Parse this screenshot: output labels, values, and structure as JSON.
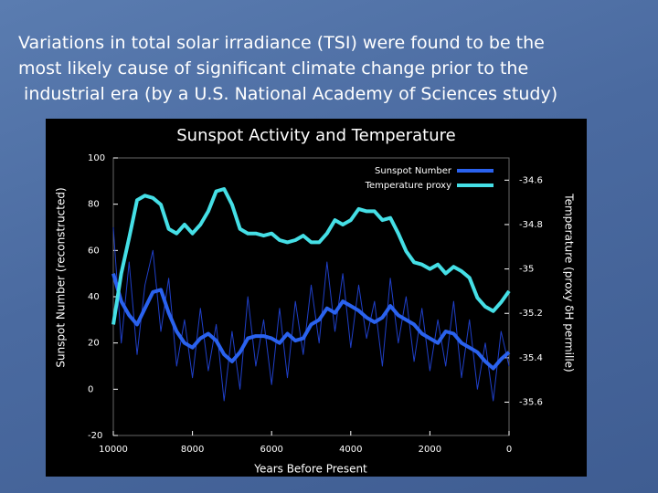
{
  "slide": {
    "text_lines": [
      "Variations in total solar irradiance (TSI) were found to be the",
      "most likely cause of significant climate change prior to the",
      " industrial era (by a U.S. National Academy of Sciences study)"
    ]
  },
  "chart_data": {
    "type": "line",
    "title": "Sunspot Activity and Temperature",
    "xlabel": "Years Before Present",
    "ylabel": "Sunspot Number (reconstructed)",
    "y2label": "Temperature (proxy δH permille)",
    "x": [
      10000,
      9800,
      9600,
      9400,
      9200,
      9000,
      8800,
      8600,
      8400,
      8200,
      8000,
      7800,
      7600,
      7400,
      7200,
      7000,
      6800,
      6600,
      6400,
      6200,
      6000,
      5800,
      5600,
      5400,
      5200,
      5000,
      4800,
      4600,
      4400,
      4200,
      4000,
      3800,
      3600,
      3400,
      3200,
      3000,
      2800,
      2600,
      2400,
      2200,
      2000,
      1800,
      1600,
      1400,
      1200,
      1000,
      800,
      600,
      400,
      200,
      0
    ],
    "series": [
      {
        "color": "#1f3fc8",
        "width": 1,
        "values": [
          70,
          20,
          55,
          15,
          45,
          60,
          25,
          48,
          10,
          30,
          5,
          35,
          8,
          28,
          -5,
          25,
          0,
          40,
          10,
          30,
          2,
          35,
          5,
          38,
          15,
          45,
          20,
          55,
          25,
          50,
          18,
          45,
          22,
          38,
          10,
          48,
          20,
          40,
          12,
          35,
          8,
          30,
          10,
          38,
          5,
          30,
          0,
          20,
          -5,
          25,
          10
        ]
      },
      {
        "name": "Sunspot Number",
        "color": "#2a62ee",
        "width": 4,
        "values": [
          50,
          38,
          32,
          28,
          35,
          42,
          43,
          33,
          25,
          20,
          18,
          22,
          24,
          21,
          15,
          12,
          16,
          22,
          23,
          23,
          22,
          20,
          24,
          21,
          22,
          28,
          30,
          35,
          33,
          38,
          36,
          34,
          31,
          29,
          31,
          36,
          32,
          30,
          28,
          24,
          22,
          20,
          25,
          24,
          20,
          18,
          16,
          12,
          9,
          13,
          16
        ]
      },
      {
        "name": "Temperature proxy",
        "color": "#45dfe6",
        "width": 4,
        "axis": "y2",
        "values": [
          -35.25,
          -35.02,
          -34.86,
          -34.69,
          -34.67,
          -34.68,
          -34.71,
          -34.82,
          -34.84,
          -34.8,
          -34.84,
          -34.8,
          -34.74,
          -34.65,
          -34.64,
          -34.71,
          -34.82,
          -34.84,
          -34.84,
          -34.85,
          -34.84,
          -34.87,
          -34.88,
          -34.87,
          -34.85,
          -34.88,
          -34.88,
          -34.84,
          -34.78,
          -34.8,
          -34.78,
          -34.73,
          -34.74,
          -34.74,
          -34.78,
          -34.77,
          -34.84,
          -34.92,
          -34.97,
          -34.98,
          -35.0,
          -34.98,
          -35.02,
          -34.99,
          -35.01,
          -35.04,
          -35.13,
          -35.17,
          -35.19,
          -35.15,
          -35.1
        ]
      }
    ],
    "xlim": [
      10000,
      0
    ],
    "xticks": [
      10000,
      8000,
      6000,
      4000,
      2000,
      0
    ],
    "ylim": [
      -20,
      100
    ],
    "yticks": [
      -20,
      0,
      20,
      40,
      60,
      80,
      100
    ],
    "y2lim": [
      -35.75,
      -34.5
    ],
    "y2ticks": [
      -35.6,
      -35.4,
      -35.2,
      -35,
      -34.8,
      -34.6
    ],
    "legend": "upper right"
  }
}
